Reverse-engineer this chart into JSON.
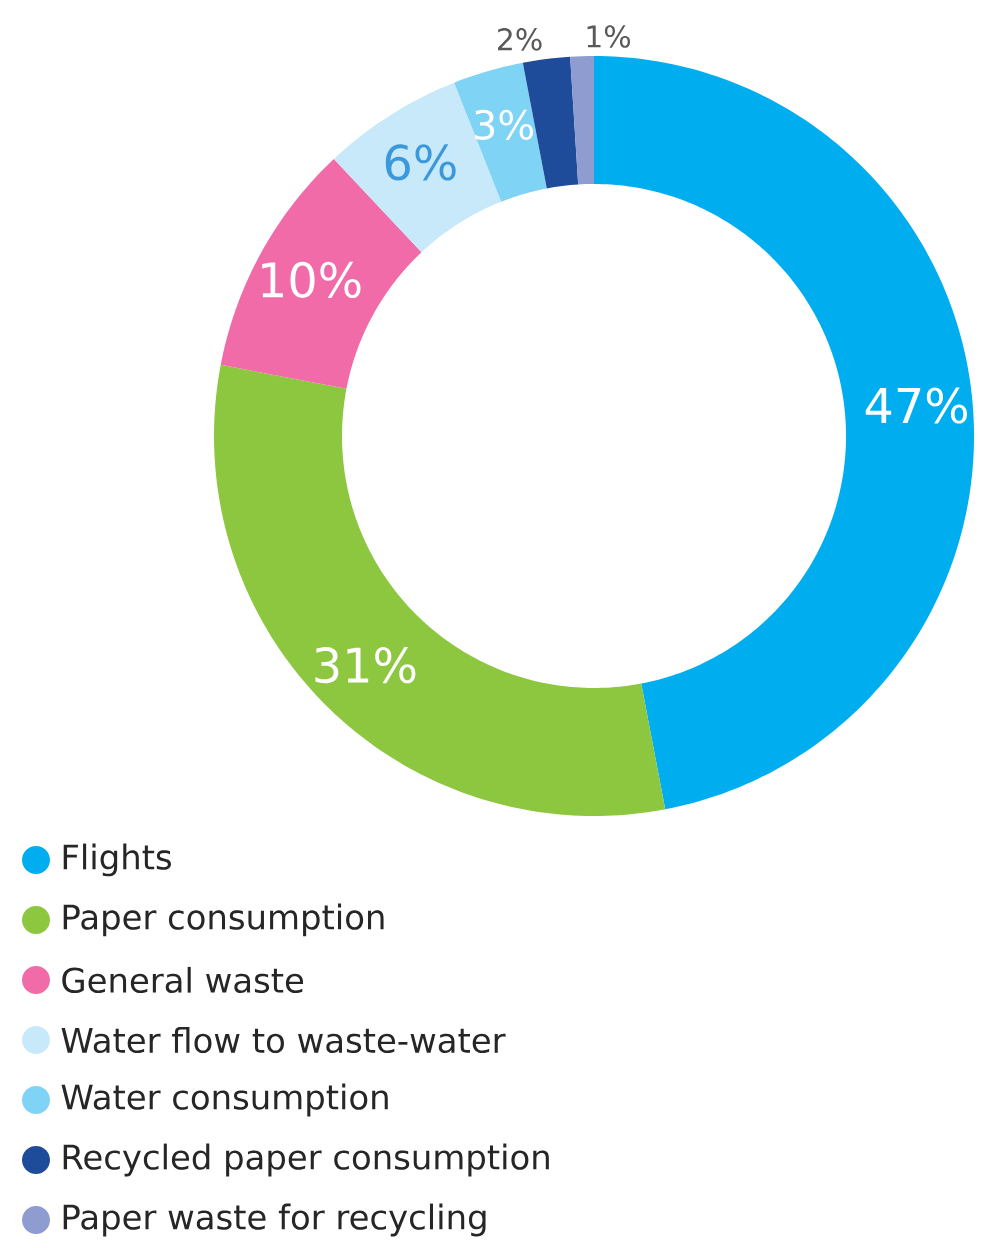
{
  "chart_data": {
    "type": "donut",
    "categories": [
      "Flights",
      "Paper consumption",
      "General waste",
      "Water flow to waste-water",
      "Water consumption",
      "Recycled paper consumption",
      "Paper waste for recycling"
    ],
    "values": [
      47,
      31,
      10,
      6,
      3,
      2,
      1
    ],
    "colors": [
      "#00aeef",
      "#8dc63f",
      "#f06ba8",
      "#c8e9f9",
      "#7fd3f5",
      "#1f4b9b",
      "#8e9ccf"
    ],
    "value_labels": [
      "47%",
      "31%",
      "10%",
      "6%",
      "3%",
      "2%",
      "1%"
    ],
    "legend": "bottom left"
  }
}
